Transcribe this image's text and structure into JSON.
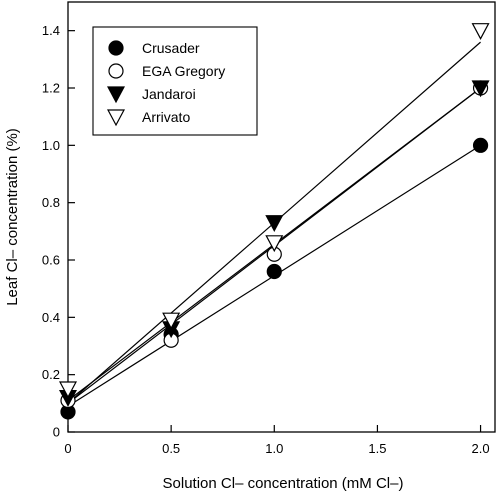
{
  "chart_data": {
    "type": "scatter",
    "title": "",
    "xlabel": "Solution Cl– concentration (mM Cl–)",
    "ylabel": "Leaf Cl– concentration (%)",
    "xlim": [
      0,
      2.07
    ],
    "ylim": [
      0,
      1.5
    ],
    "xticks": [
      0,
      0.5,
      1.0,
      1.5,
      2.0
    ],
    "xtick_labels": [
      "0",
      "0.5",
      "1.0",
      "1.5",
      "2.0"
    ],
    "yticks": [
      0,
      0.2,
      0.4,
      0.6,
      0.8,
      1.0,
      1.2,
      1.4
    ],
    "ytick_labels": [
      "0",
      "0.2",
      "0.4",
      "0.6",
      "0.8",
      "1.0",
      "1.2",
      "1.4"
    ],
    "legend_position": "top-left",
    "grid": false,
    "series": [
      {
        "name": "Crusader",
        "marker": "filled-circle",
        "x": [
          0,
          0.5,
          1.0,
          2.0
        ],
        "y": [
          0.07,
          0.34,
          0.56,
          1.0
        ],
        "fit": [
          0.09,
          0.455
        ]
      },
      {
        "name": "EGA Gregory",
        "marker": "open-circle",
        "x": [
          0,
          0.5,
          1.0,
          2.0
        ],
        "y": [
          0.11,
          0.32,
          0.62,
          1.2
        ],
        "fit": [
          0.1,
          0.55
        ]
      },
      {
        "name": "Jandaroi",
        "marker": "filled-triangle-down",
        "x": [
          0,
          0.5,
          1.0,
          2.0
        ],
        "y": [
          0.12,
          0.36,
          0.73,
          1.2
        ],
        "fit": [
          0.11,
          0.545
        ]
      },
      {
        "name": "Arrivato",
        "marker": "open-triangle-down",
        "x": [
          0,
          0.5,
          1.0,
          2.0
        ],
        "y": [
          0.15,
          0.39,
          0.66,
          1.4
        ],
        "fit": [
          0.1,
          0.63
        ]
      }
    ]
  }
}
